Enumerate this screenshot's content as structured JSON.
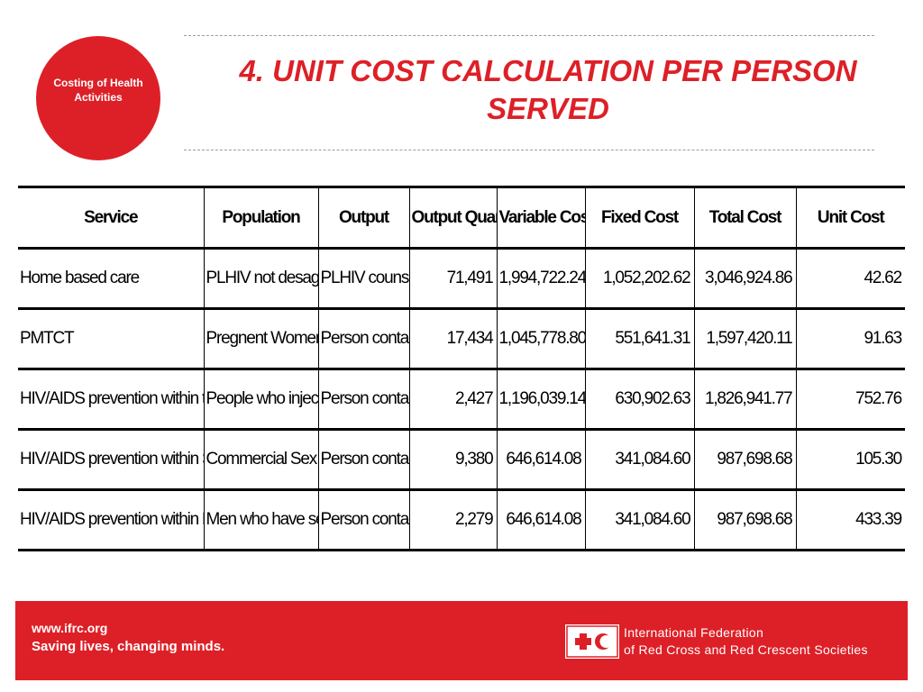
{
  "badge": {
    "line1": "Costing of Health",
    "line2": "Activities"
  },
  "title": {
    "line1": "4. UNIT COST CALCULATION PER PERSON",
    "line2": "SERVED"
  },
  "table": {
    "headers": [
      "Service",
      "Population",
      "Output",
      "Output Quantity",
      "Variable Cost",
      "Fixed Cost",
      "Total Cost",
      "Unit Cost"
    ],
    "rows": [
      [
        "Home based care",
        "PLHIV not desagregated",
        "PLHIV counselled",
        "71,491",
        "1,994,722.24",
        "1,052,202.62",
        "3,046,924.86",
        "42.62"
      ],
      [
        "PMTCT",
        "Pregnent Women deliver",
        "Person contacted",
        "17,434",
        "1,045,778.80",
        "551,641.31",
        "1,597,420.11",
        "91.63"
      ],
      [
        "HIV/AIDS prevention within to IDUs",
        "People who injects drugs",
        "Person contacted",
        "2,427",
        "1,196,039.14",
        "630,902.63",
        "1,826,941.77",
        "752.76"
      ],
      [
        "HIV/AIDS prevention within SWs",
        "Commercial Sex Worker",
        "Person contacted",
        "9,380",
        "646,614.08",
        "341,084.60",
        "987,698.68",
        "105.30"
      ],
      [
        "HIV/AIDS prevention within MSMs",
        "Men who have sex with m",
        "Person contacted",
        "2,279",
        "646,614.08",
        "341,084.60",
        "987,698.68",
        "433.39"
      ]
    ]
  },
  "footer": {
    "url": "www.ifrc.org",
    "tagline": "Saving lives, changing minds.",
    "org_line1": "International Federation",
    "org_line2": "of Red Cross and Red Crescent Societies"
  },
  "colors": {
    "brand_red": "#dd2027",
    "text": "#000000",
    "rule": "#9c9c9c"
  }
}
